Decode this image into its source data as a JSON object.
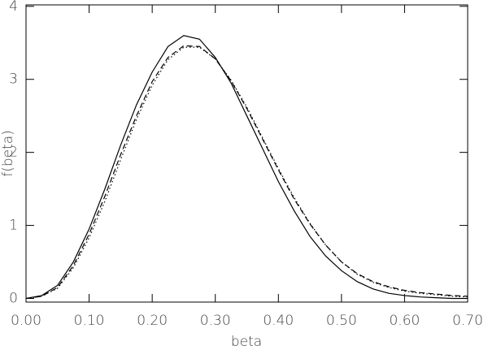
{
  "chart_data": {
    "type": "line",
    "xlabel": "beta",
    "ylabel": "f(beta)",
    "x": [
      0,
      0.025,
      0.05,
      0.075,
      0.1,
      0.125,
      0.15,
      0.175,
      0.2,
      0.225,
      0.25,
      0.275,
      0.3,
      0.325,
      0.35,
      0.375,
      0.4,
      0.425,
      0.45,
      0.475,
      0.5,
      0.525,
      0.55,
      0.575,
      0.6,
      0.625,
      0.65,
      0.675,
      0.7
    ],
    "series": [
      {
        "color": "#000000",
        "style": "solid",
        "values": [
          0.0,
          0.04,
          0.18,
          0.5,
          0.95,
          1.5,
          2.1,
          2.65,
          3.1,
          3.45,
          3.6,
          3.55,
          3.3,
          2.95,
          2.5,
          2.05,
          1.6,
          1.2,
          0.85,
          0.58,
          0.38,
          0.23,
          0.13,
          0.07,
          0.04,
          0.02,
          0.01,
          0.0,
          0.0
        ]
      },
      {
        "color": "#000000",
        "style": "dashed",
        "values": [
          0.0,
          0.03,
          0.15,
          0.45,
          0.88,
          1.4,
          1.97,
          2.5,
          2.97,
          3.3,
          3.46,
          3.45,
          3.28,
          2.98,
          2.6,
          2.18,
          1.76,
          1.36,
          1.02,
          0.73,
          0.5,
          0.34,
          0.23,
          0.16,
          0.11,
          0.08,
          0.06,
          0.04,
          0.03
        ]
      },
      {
        "color": "#000000",
        "style": "dotted",
        "values": [
          0.0,
          0.03,
          0.14,
          0.42,
          0.83,
          1.33,
          1.9,
          2.45,
          2.92,
          3.27,
          3.44,
          3.44,
          3.28,
          2.99,
          2.62,
          2.2,
          1.78,
          1.38,
          1.03,
          0.73,
          0.5,
          0.33,
          0.22,
          0.15,
          0.1,
          0.07,
          0.05,
          0.03,
          0.02
        ]
      }
    ],
    "xlim": [
      0,
      0.7
    ],
    "ylim": [
      -0.05,
      4.02
    ],
    "xticks": [
      {
        "value": 0,
        "label": "0.00"
      },
      {
        "value": 0.1,
        "label": "0.10"
      },
      {
        "value": 0.2,
        "label": "0.20"
      },
      {
        "value": 0.3,
        "label": "0.30"
      },
      {
        "value": 0.4,
        "label": "0.40"
      },
      {
        "value": 0.5,
        "label": "0.50"
      },
      {
        "value": 0.6,
        "label": "0.60"
      },
      {
        "value": 0.7,
        "label": "0.70"
      }
    ],
    "yticks": [
      0,
      1,
      2,
      3,
      4
    ],
    "grid": false
  }
}
